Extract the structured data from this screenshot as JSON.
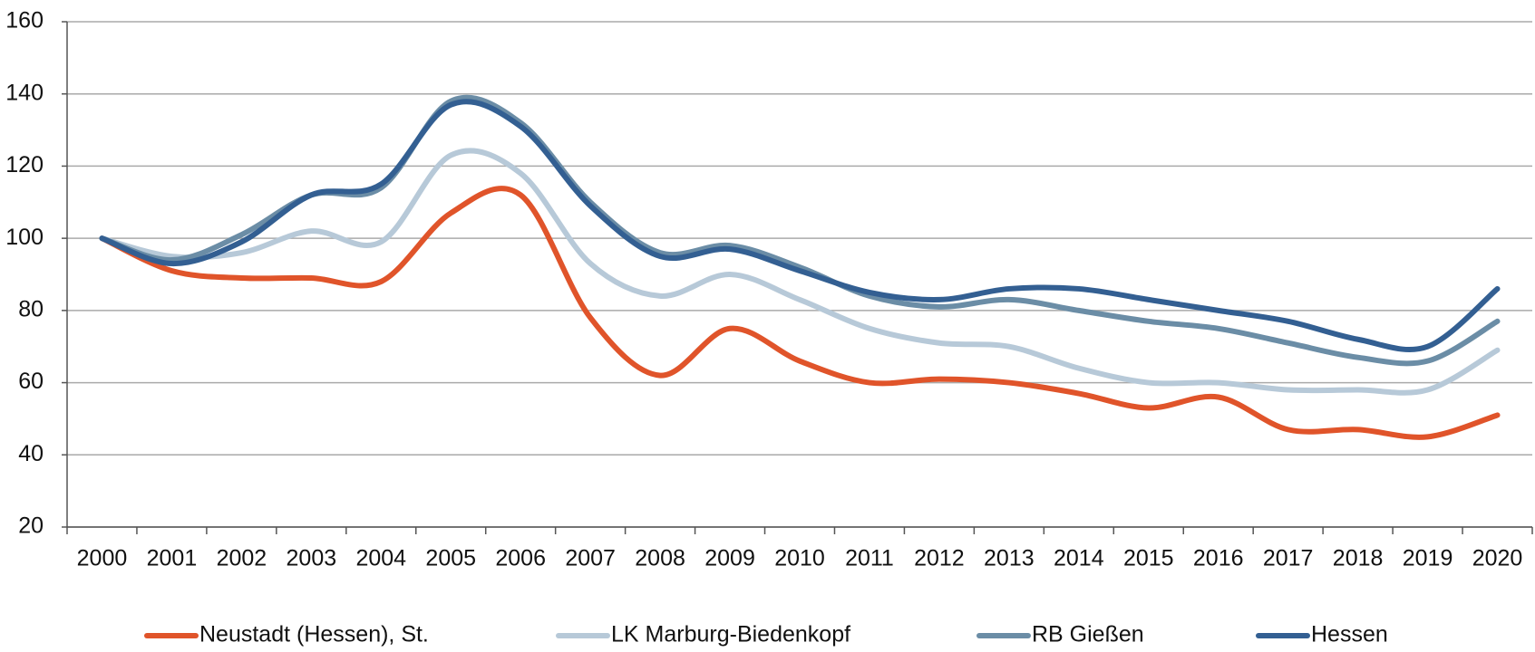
{
  "chart_data": {
    "type": "line",
    "categories": [
      "2000",
      "2001",
      "2002",
      "2003",
      "2004",
      "2005",
      "2006",
      "2007",
      "2008",
      "2009",
      "2010",
      "2011",
      "2012",
      "2013",
      "2014",
      "2015",
      "2016",
      "2017",
      "2018",
      "2019",
      "2020"
    ],
    "series": [
      {
        "name": "Neustadt (Hessen), St.",
        "color": "#e0542a",
        "values": [
          100,
          91,
          89,
          89,
          88,
          107,
          112,
          78,
          62,
          75,
          66,
          60,
          61,
          60,
          57,
          53,
          56,
          47,
          47,
          45,
          51
        ]
      },
      {
        "name": "LK Marburg-Biedenkopf",
        "color": "#b7c9d8",
        "values": [
          100,
          95,
          96,
          102,
          99,
          123,
          118,
          93,
          84,
          90,
          83,
          75,
          71,
          70,
          64,
          60,
          60,
          58,
          58,
          58,
          69
        ]
      },
      {
        "name": "RB Gießen",
        "color": "#6b8da6",
        "values": [
          100,
          94,
          101,
          112,
          114,
          138,
          132,
          110,
          96,
          98,
          92,
          84,
          81,
          83,
          80,
          77,
          75,
          71,
          67,
          66,
          77
        ]
      },
      {
        "name": "Hessen",
        "color": "#335f92",
        "values": [
          100,
          93,
          99,
          112,
          115,
          137,
          131,
          109,
          95,
          97,
          91,
          85,
          83,
          86,
          86,
          83,
          80,
          77,
          72,
          70,
          86
        ]
      }
    ],
    "ylim": [
      20,
      160
    ],
    "yticks": [
      20,
      40,
      60,
      80,
      100,
      120,
      140,
      160
    ],
    "grid": true,
    "legend": "bottom"
  }
}
